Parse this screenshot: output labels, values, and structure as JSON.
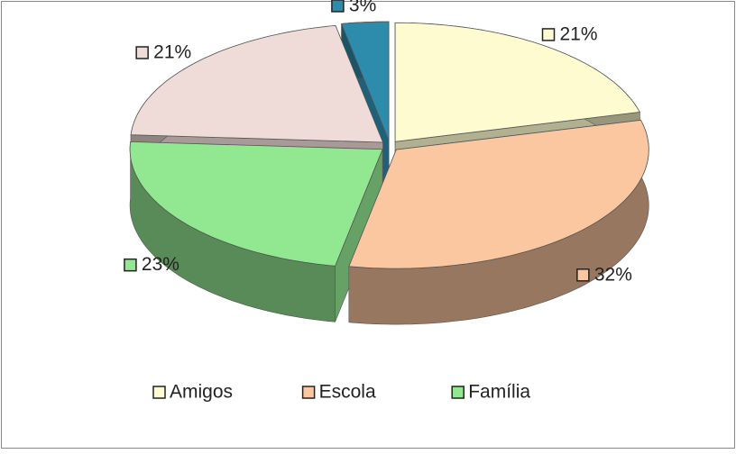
{
  "chart_data": {
    "type": "pie",
    "three_d": true,
    "categories": [
      "Amigos",
      "Escola",
      "Família",
      null,
      null
    ],
    "values": [
      21,
      32,
      23,
      21,
      3
    ],
    "value_labels": [
      "21%",
      "32%",
      "23%",
      "21%",
      "3%"
    ],
    "colors": [
      "#fdfbcf",
      "#fbc7a0",
      "#92e891",
      "#efdcd8",
      "#2d8bab"
    ],
    "legend": "bottom"
  }
}
